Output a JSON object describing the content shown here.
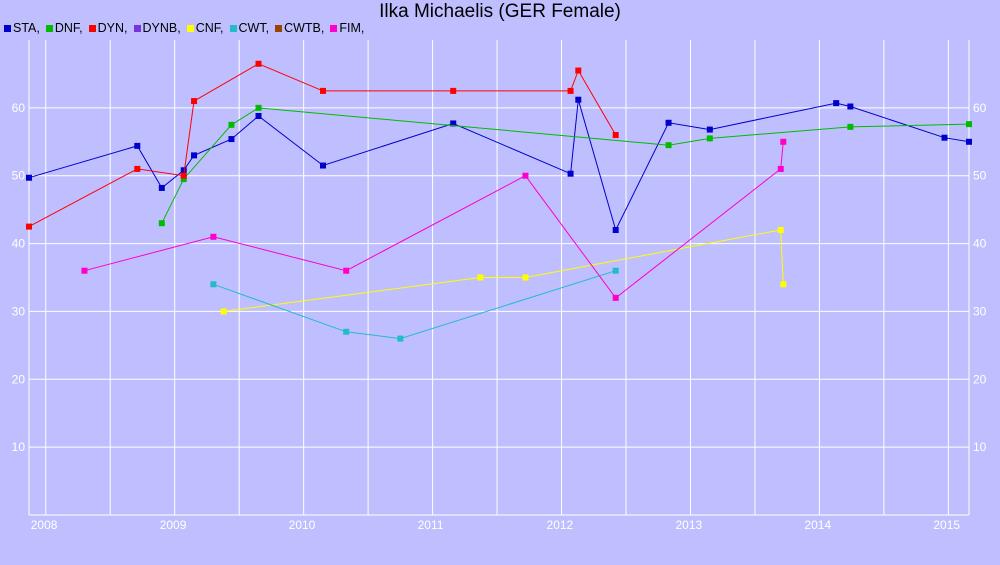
{
  "chart_data": {
    "type": "line",
    "title": "Ilka Michaelis (GER Female)",
    "xlabel": "",
    "ylabel": "",
    "xlim": [
      2007.87,
      2015.16
    ],
    "ylim": [
      0,
      70
    ],
    "grid": true,
    "legend_position": "top-left",
    "x_ticks": [
      {
        "label": "2008",
        "value": 2008
      },
      {
        "label": "2009",
        "value": 2009
      },
      {
        "label": "2010",
        "value": 2010
      },
      {
        "label": "2011",
        "value": 2011
      },
      {
        "label": "2012",
        "value": 2012
      },
      {
        "label": "2013",
        "value": 2013
      },
      {
        "label": "2014",
        "value": 2014
      },
      {
        "label": "2015",
        "value": 2015
      }
    ],
    "y_ticks": [
      10,
      20,
      30,
      40,
      50,
      60
    ],
    "series": [
      {
        "name": "STA,",
        "color": "#0000cc",
        "points": [
          [
            2007.87,
            49.7
          ],
          [
            2008.71,
            54.4
          ],
          [
            2008.9,
            48.2
          ],
          [
            2009.07,
            50.8
          ],
          [
            2009.15,
            53.0
          ],
          [
            2009.44,
            55.4
          ],
          [
            2009.65,
            58.8
          ],
          [
            2010.15,
            51.5
          ],
          [
            2011.16,
            57.7
          ],
          [
            2012.07,
            50.3
          ],
          [
            2012.13,
            61.2
          ],
          [
            2012.42,
            42.0
          ],
          [
            2012.83,
            57.8
          ],
          [
            2013.15,
            56.8
          ],
          [
            2014.13,
            60.7
          ],
          [
            2014.24,
            60.2
          ],
          [
            2014.97,
            55.6
          ],
          [
            2015.16,
            55.0
          ]
        ]
      },
      {
        "name": "DNF,",
        "color": "#00bb00",
        "points": [
          [
            2008.9,
            43.0
          ],
          [
            2009.07,
            49.5
          ],
          [
            2009.44,
            57.5
          ],
          [
            2009.65,
            60.0
          ],
          [
            2012.83,
            54.5
          ],
          [
            2013.15,
            55.5
          ],
          [
            2014.24,
            57.2
          ],
          [
            2015.16,
            57.6
          ]
        ]
      },
      {
        "name": "DYN,",
        "color": "#ff0000",
        "points": [
          [
            2007.87,
            42.5
          ],
          [
            2008.71,
            51.0
          ],
          [
            2009.07,
            50.0
          ],
          [
            2009.15,
            61.0
          ],
          [
            2009.65,
            66.5
          ],
          [
            2010.15,
            62.5
          ],
          [
            2011.16,
            62.5
          ],
          [
            2012.07,
            62.5
          ],
          [
            2012.13,
            65.5
          ],
          [
            2012.42,
            56.0
          ]
        ]
      },
      {
        "name": "DYNB,",
        "color": "#7733dd",
        "points": []
      },
      {
        "name": "CNF,",
        "color": "#ffff00",
        "points": [
          [
            2009.38,
            30.0
          ],
          [
            2011.37,
            35.0
          ],
          [
            2011.72,
            35.0
          ],
          [
            2013.7,
            42.0
          ],
          [
            2013.72,
            34.0
          ]
        ]
      },
      {
        "name": "CWT,",
        "color": "#22bbcc",
        "points": [
          [
            2009.3,
            34.0
          ],
          [
            2010.33,
            27.0
          ],
          [
            2010.75,
            26.0
          ],
          [
            2012.42,
            36.0
          ]
        ]
      },
      {
        "name": "CWTB,",
        "color": "#994400",
        "points": []
      },
      {
        "name": "FIM,",
        "color": "#ff00cc",
        "points": [
          [
            2008.3,
            36.0
          ],
          [
            2009.3,
            41.0
          ],
          [
            2010.33,
            36.0
          ],
          [
            2011.72,
            50.0
          ],
          [
            2012.42,
            32.0
          ],
          [
            2013.7,
            51.0
          ],
          [
            2013.72,
            55.0
          ]
        ]
      }
    ]
  }
}
